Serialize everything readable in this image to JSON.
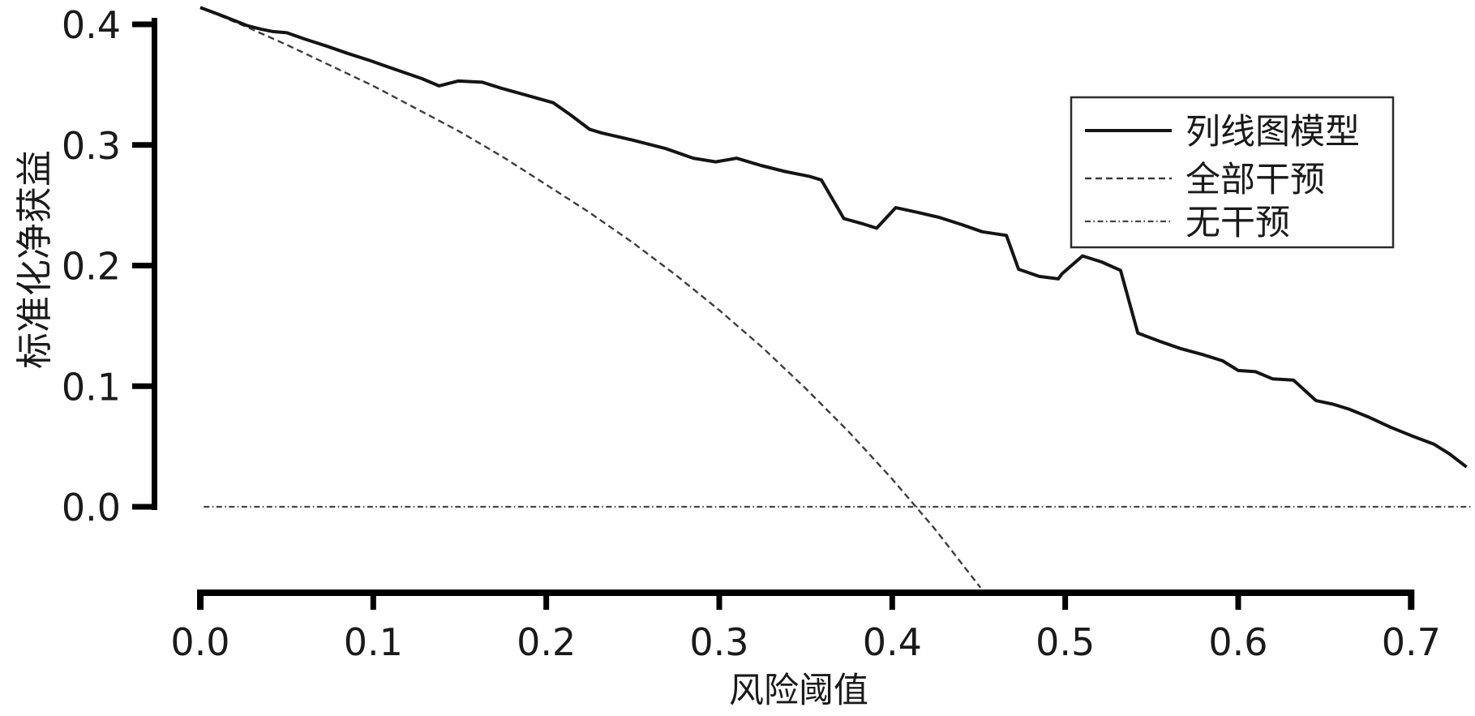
{
  "chart_data": {
    "type": "line",
    "title": "",
    "xlabel": "风险阈值",
    "ylabel": "标准化净获益",
    "xlim": [
      0.0,
      0.73
    ],
    "ylim": [
      -0.07,
      0.414
    ],
    "x_ticks": [
      0.0,
      0.1,
      0.2,
      0.3,
      0.4,
      0.5,
      0.6,
      0.7
    ],
    "y_ticks": [
      0.0,
      0.1,
      0.2,
      0.3,
      0.4
    ],
    "grid": false,
    "legend_position": "upper right",
    "axis_color": "#000000",
    "series": [
      {
        "name": "列线图模型",
        "style": "solid",
        "color": "#141414",
        "points": [
          [
            0.0,
            0.414
          ],
          [
            0.013,
            0.407
          ],
          [
            0.027,
            0.399
          ],
          [
            0.035,
            0.396
          ],
          [
            0.042,
            0.394
          ],
          [
            0.05,
            0.393
          ],
          [
            0.06,
            0.388
          ],
          [
            0.073,
            0.382
          ],
          [
            0.085,
            0.376
          ],
          [
            0.098,
            0.37
          ],
          [
            0.108,
            0.365
          ],
          [
            0.118,
            0.36
          ],
          [
            0.128,
            0.355
          ],
          [
            0.138,
            0.349
          ],
          [
            0.149,
            0.353
          ],
          [
            0.163,
            0.352
          ],
          [
            0.174,
            0.347
          ],
          [
            0.194,
            0.339
          ],
          [
            0.204,
            0.335
          ],
          [
            0.214,
            0.325
          ],
          [
            0.225,
            0.313
          ],
          [
            0.232,
            0.31
          ],
          [
            0.25,
            0.304
          ],
          [
            0.269,
            0.297
          ],
          [
            0.285,
            0.289
          ],
          [
            0.298,
            0.286
          ],
          [
            0.31,
            0.289
          ],
          [
            0.324,
            0.283
          ],
          [
            0.338,
            0.278
          ],
          [
            0.352,
            0.274
          ],
          [
            0.359,
            0.271
          ],
          [
            0.372,
            0.239
          ],
          [
            0.382,
            0.235
          ],
          [
            0.391,
            0.231
          ],
          [
            0.402,
            0.248
          ],
          [
            0.415,
            0.244
          ],
          [
            0.427,
            0.24
          ],
          [
            0.44,
            0.234
          ],
          [
            0.452,
            0.228
          ],
          [
            0.466,
            0.225
          ],
          [
            0.473,
            0.197
          ],
          [
            0.485,
            0.191
          ],
          [
            0.496,
            0.189
          ],
          [
            0.498,
            0.193
          ],
          [
            0.51,
            0.208
          ],
          [
            0.521,
            0.203
          ],
          [
            0.532,
            0.196
          ],
          [
            0.542,
            0.144
          ],
          [
            0.555,
            0.137
          ],
          [
            0.567,
            0.131
          ],
          [
            0.58,
            0.126
          ],
          [
            0.591,
            0.121
          ],
          [
            0.6,
            0.113
          ],
          [
            0.61,
            0.112
          ],
          [
            0.62,
            0.106
          ],
          [
            0.632,
            0.105
          ],
          [
            0.645,
            0.088
          ],
          [
            0.655,
            0.085
          ],
          [
            0.664,
            0.081
          ],
          [
            0.676,
            0.074
          ],
          [
            0.688,
            0.066
          ],
          [
            0.7,
            0.059
          ],
          [
            0.713,
            0.052
          ],
          [
            0.722,
            0.044
          ],
          [
            0.732,
            0.033
          ]
        ]
      },
      {
        "name": "全部干预",
        "style": "dashed",
        "color": "#3c3c3c",
        "points": [
          [
            0.0,
            0.414
          ],
          [
            0.025,
            0.399
          ],
          [
            0.05,
            0.383
          ],
          [
            0.075,
            0.366
          ],
          [
            0.1,
            0.349
          ],
          [
            0.125,
            0.33
          ],
          [
            0.15,
            0.311
          ],
          [
            0.175,
            0.29
          ],
          [
            0.2,
            0.267
          ],
          [
            0.225,
            0.244
          ],
          [
            0.25,
            0.219
          ],
          [
            0.275,
            0.192
          ],
          [
            0.3,
            0.163
          ],
          [
            0.325,
            0.132
          ],
          [
            0.35,
            0.098
          ],
          [
            0.375,
            0.062
          ],
          [
            0.4,
            0.023
          ],
          [
            0.425,
            -0.019
          ],
          [
            0.451,
            -0.067
          ]
        ]
      },
      {
        "name": "无干预",
        "style": "dashdot",
        "color": "#454545",
        "points": [
          [
            0.002,
            0.0
          ],
          [
            0.735,
            0.0
          ]
        ]
      }
    ]
  }
}
